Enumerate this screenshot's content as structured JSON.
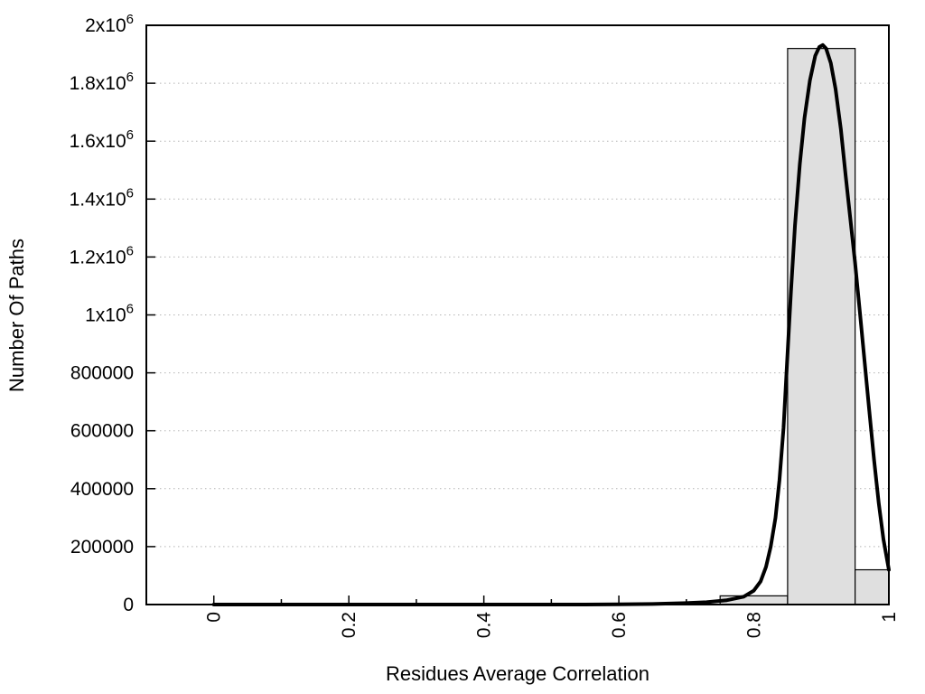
{
  "chart_data": {
    "type": "bar",
    "subtype": "histogram_with_fit_curve",
    "title": "",
    "xlabel": "Residues Average Correlation",
    "ylabel": "Number Of Paths",
    "xlim": [
      -0.1,
      1.0
    ],
    "ylim": [
      0,
      2000000
    ],
    "x_major_ticks": [
      {
        "v": 0,
        "label": "0"
      },
      {
        "v": 0.2,
        "label": "0.2"
      },
      {
        "v": 0.4,
        "label": "0.4"
      },
      {
        "v": 0.6,
        "label": "0.6"
      },
      {
        "v": 0.8,
        "label": "0.8"
      },
      {
        "v": 1,
        "label": "1"
      }
    ],
    "x_minor_ticks": [
      0.1,
      0.3,
      0.5,
      0.7,
      0.9
    ],
    "y_ticks": [
      {
        "v": 0,
        "label": "0"
      },
      {
        "v": 200000,
        "label": "200000"
      },
      {
        "v": 400000,
        "label": "400000"
      },
      {
        "v": 600000,
        "label": "600000"
      },
      {
        "v": 800000,
        "label": "800000"
      },
      {
        "v": 1000000,
        "label": "1x10^6"
      },
      {
        "v": 1200000,
        "label": "1.2x10^6"
      },
      {
        "v": 1400000,
        "label": "1.4x10^6"
      },
      {
        "v": 1600000,
        "label": "1.6x10^6"
      },
      {
        "v": 1800000,
        "label": "1.8x10^6"
      },
      {
        "v": 2000000,
        "label": "2x10^6"
      }
    ],
    "grid": {
      "horizontal": true,
      "vertical": false,
      "style": "dotted",
      "color": "#b4b4b4"
    },
    "bars": [
      {
        "x0": 0.75,
        "x1": 0.85,
        "value": 30000
      },
      {
        "x0": 0.85,
        "x1": 0.95,
        "value": 1920000
      },
      {
        "x0": 0.95,
        "x1": 1.0,
        "value": 120000
      }
    ],
    "bar_fill": "#dfdfdf",
    "bar_stroke": "#000000",
    "curve": {
      "color": "#000000",
      "width": 4,
      "points": [
        [
          0.0,
          0
        ],
        [
          0.1,
          0
        ],
        [
          0.2,
          0
        ],
        [
          0.3,
          0
        ],
        [
          0.4,
          0
        ],
        [
          0.5,
          0
        ],
        [
          0.55,
          0
        ],
        [
          0.6,
          1000
        ],
        [
          0.65,
          2000
        ],
        [
          0.7,
          5000
        ],
        [
          0.73,
          8000
        ],
        [
          0.76,
          15000
        ],
        [
          0.785,
          27000
        ],
        [
          0.8,
          48000
        ],
        [
          0.81,
          80000
        ],
        [
          0.818,
          130000
        ],
        [
          0.825,
          200000
        ],
        [
          0.832,
          300000
        ],
        [
          0.838,
          430000
        ],
        [
          0.844,
          610000
        ],
        [
          0.849,
          830000
        ],
        [
          0.855,
          1080000
        ],
        [
          0.861,
          1310000
        ],
        [
          0.868,
          1520000
        ],
        [
          0.875,
          1680000
        ],
        [
          0.883,
          1810000
        ],
        [
          0.891,
          1895000
        ],
        [
          0.897,
          1925000
        ],
        [
          0.902,
          1932000
        ],
        [
          0.907,
          1920000
        ],
        [
          0.914,
          1870000
        ],
        [
          0.921,
          1780000
        ],
        [
          0.929,
          1640000
        ],
        [
          0.936,
          1480000
        ],
        [
          0.943,
          1330000
        ],
        [
          0.95,
          1180000
        ],
        [
          0.957,
          1010000
        ],
        [
          0.964,
          840000
        ],
        [
          0.971,
          670000
        ],
        [
          0.978,
          500000
        ],
        [
          0.985,
          350000
        ],
        [
          0.992,
          225000
        ],
        [
          1.0,
          120000
        ]
      ]
    }
  }
}
